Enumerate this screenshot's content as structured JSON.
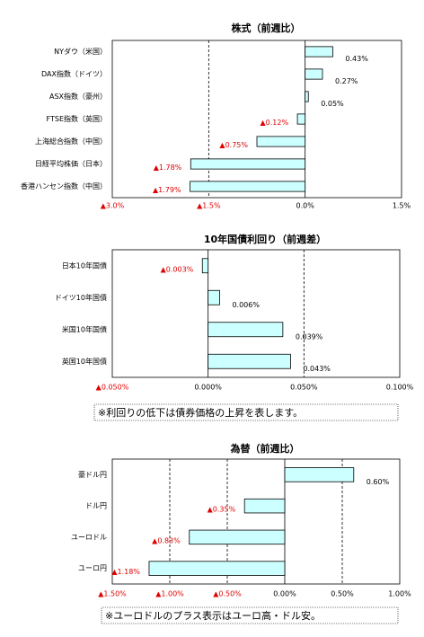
{
  "chart_data": [
    {
      "type": "barh",
      "title": "株式（前週比）",
      "categories": [
        "NYダウ（米国）",
        "DAX指数（ドイツ）",
        "ASX指数（豪州）",
        "FTSE指数（英国）",
        "上海総合指数（中国）",
        "日経平均株価（日本）",
        "香港ハンセン指数（中国）"
      ],
      "values": [
        0.43,
        0.27,
        0.05,
        -0.12,
        -0.75,
        -1.78,
        -1.79
      ],
      "value_labels": [
        "0.43%",
        "0.27%",
        "0.05%",
        "▲0.12%",
        "▲0.75%",
        "▲1.78%",
        "▲1.79%"
      ],
      "color": "#ccffff",
      "xlim": [
        -3,
        1.5
      ],
      "xticks": [
        {
          "value": -3,
          "label": "▲3.0%"
        },
        {
          "value": -1.5,
          "label": "▲1.5%"
        },
        {
          "value": 0,
          "label": "0.0%"
        },
        {
          "value": 1.5,
          "label": "1.5%"
        }
      ],
      "grid": true
    },
    {
      "type": "barh",
      "title": "10年国債利回り（前週差）",
      "categories": [
        "日本10年国債",
        "ドイツ10年国債",
        "米国10年国債",
        "英国10年国債"
      ],
      "values": [
        -0.003,
        0.006,
        0.039,
        0.043
      ],
      "value_labels": [
        "▲0.003%",
        "0.006%",
        "0.039%",
        "0.043%"
      ],
      "color": "#ccffff",
      "xlim": [
        -0.05,
        0.1
      ],
      "xticks": [
        {
          "value": -0.05,
          "label": "▲0.050%"
        },
        {
          "value": 0,
          "label": "0.000%"
        },
        {
          "value": 0.05,
          "label": "0.050%"
        },
        {
          "value": 0.1,
          "label": "0.100%"
        }
      ],
      "grid": true,
      "note": "※利回りの低下は債券価格の上昇を表します。"
    },
    {
      "type": "barh",
      "title": "為替（前週比）",
      "categories": [
        "豪ドル円",
        "ドル円",
        "ユーロドル",
        "ユーロ円"
      ],
      "values": [
        0.6,
        -0.35,
        -0.83,
        -1.18
      ],
      "value_labels": [
        "0.60%",
        "▲0.35%",
        "▲0.83%",
        "▲1.18%"
      ],
      "color": "#ccffff",
      "xlim": [
        -1.5,
        1
      ],
      "xticks": [
        {
          "value": -1.5,
          "label": "▲1.50%"
        },
        {
          "value": -1,
          "label": "▲1.00%"
        },
        {
          "value": -0.5,
          "label": "▲0.50%"
        },
        {
          "value": 0,
          "label": "0.00%"
        },
        {
          "value": 0.5,
          "label": "0.50%"
        },
        {
          "value": 1,
          "label": "1.00%"
        }
      ],
      "grid": true,
      "note": "※ユーロドルのプラス表示はユーロ高・ドル安。"
    }
  ]
}
